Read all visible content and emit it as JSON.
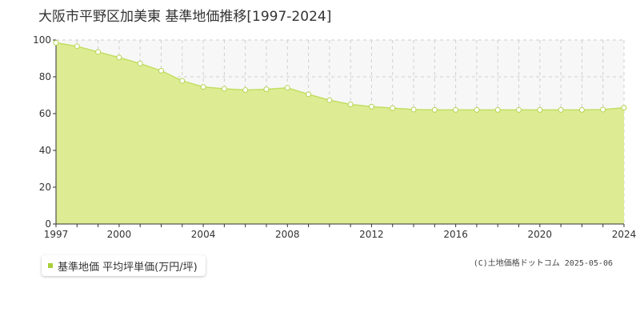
{
  "chart_data": {
    "type": "area",
    "title": "大阪市平野区加美東 基準地価推移[1997-2024]",
    "x": [
      1997,
      1998,
      1999,
      2000,
      2001,
      2002,
      2003,
      2004,
      2005,
      2006,
      2007,
      2008,
      2009,
      2010,
      2011,
      2012,
      2013,
      2014,
      2015,
      2016,
      2017,
      2018,
      2019,
      2020,
      2021,
      2022,
      2023,
      2024
    ],
    "series": [
      {
        "name": "基準地価 平均坪単価(万円/坪)",
        "values": [
          98.5,
          96.6,
          93.5,
          90.5,
          87.2,
          83.3,
          77.8,
          74.5,
          73.5,
          72.8,
          73.2,
          74.0,
          70.5,
          67.3,
          65.0,
          63.8,
          63.0,
          62.2,
          62.0,
          62.0,
          62.0,
          62.0,
          62.0,
          62.0,
          62.0,
          62.0,
          62.2,
          63.2
        ]
      }
    ],
    "xlim": [
      1997,
      2024
    ],
    "ylim": [
      0,
      100
    ],
    "x_ticks": [
      1997,
      2000,
      2004,
      2008,
      2012,
      2016,
      2020,
      2024
    ],
    "y_ticks": [
      0,
      20,
      40,
      60,
      80,
      100
    ],
    "grid": true,
    "legend_position": "bottom-left",
    "colors": {
      "fill": "#ddec93",
      "line": "#c2de61",
      "marker_fill": "#ffffff",
      "marker_stroke": "#b5d452",
      "grid": "#cfcfcf",
      "plot_background": "#f7f7f7",
      "legend_marker": "#a8cf3a"
    }
  },
  "legend": {
    "label": "基準地価 平均坪単価(万円/坪)"
  },
  "credit": "(C)土地価格ドットコム 2025-05-06"
}
